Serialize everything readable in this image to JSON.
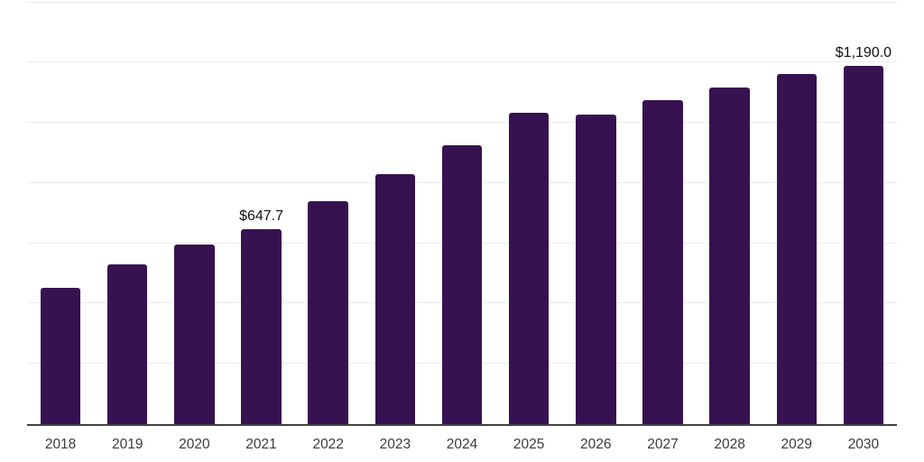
{
  "chart_data": {
    "type": "bar",
    "categories": [
      "2018",
      "2019",
      "2020",
      "2021",
      "2022",
      "2023",
      "2024",
      "2025",
      "2026",
      "2027",
      "2028",
      "2029",
      "2030"
    ],
    "values": [
      451,
      529,
      596,
      647.7,
      741,
      829,
      925,
      1032,
      1026,
      1075,
      1116,
      1162,
      1190
    ],
    "data_labels": [
      {
        "category": "2021",
        "text": "$647.7"
      },
      {
        "category": "2030",
        "text": "$1,190.0"
      }
    ],
    "ylim": [
      0,
      1400
    ],
    "gridline_step": 200,
    "grid": true,
    "legend": "none",
    "colors": {
      "bar": "#371250",
      "gridline": "#ededed",
      "axis_line": "#424242",
      "tick_label": "#3b3b3b",
      "data_label": "#111111",
      "background": "#ffffff"
    }
  }
}
